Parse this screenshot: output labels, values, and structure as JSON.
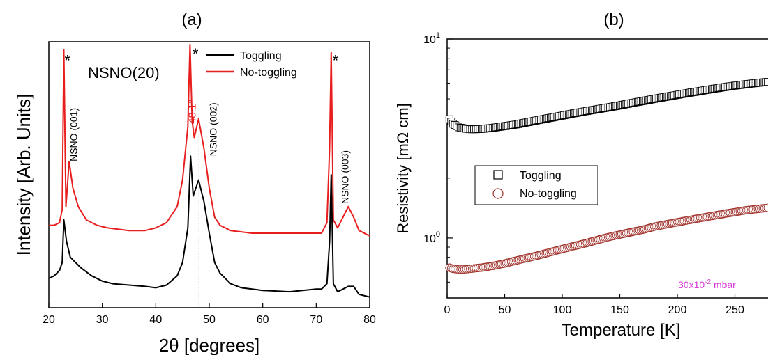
{
  "chart_data": [
    {
      "panel_label": "(a)",
      "type": "line",
      "xlabel": "2θ [degrees]",
      "ylabel": "Intensity [Arb. Units]",
      "xlim": [
        20,
        80
      ],
      "ylim": [
        0,
        1
      ],
      "xticks": [
        20,
        30,
        40,
        50,
        60,
        70,
        80
      ],
      "grid": false,
      "legend": {
        "placement": "top-right",
        "entries": [
          "Toggling",
          "No-toggling"
        ]
      },
      "sample_label": "NSNO(20)",
      "reference_line": {
        "x": 48.1,
        "label": "48.1°"
      },
      "annotations": [
        {
          "text": "*",
          "x": 23.5,
          "y": 0.91
        },
        {
          "text": "*",
          "x": 47.4,
          "y": 0.935
        },
        {
          "text": "*",
          "x": 73.6,
          "y": 0.91
        },
        {
          "text": "NSNO (001)",
          "x": 25.3,
          "y": 0.55,
          "rotate": -90
        },
        {
          "text": "NSNO (002)",
          "x": 51.4,
          "y": 0.57,
          "rotate": -90
        },
        {
          "text": "NSNO (003)",
          "x": 76.0,
          "y": 0.39,
          "rotate": -90
        }
      ],
      "series": [
        {
          "name": "Toggling",
          "color": "#000000",
          "x": [
            20,
            21,
            22,
            22.5,
            22.8,
            23.3,
            24,
            25,
            26,
            28,
            30,
            32,
            35,
            38,
            40,
            42,
            44,
            45,
            46,
            46.5,
            47,
            47.5,
            48,
            49,
            50,
            51,
            52,
            54,
            56,
            58,
            60,
            65,
            70,
            71,
            72,
            72.5,
            72.8,
            73.2,
            74,
            75,
            76,
            77,
            78,
            80
          ],
          "y": [
            0.11,
            0.12,
            0.14,
            0.17,
            0.33,
            0.25,
            0.19,
            0.17,
            0.15,
            0.12,
            0.1,
            0.09,
            0.085,
            0.08,
            0.075,
            0.085,
            0.12,
            0.17,
            0.3,
            0.57,
            0.42,
            0.45,
            0.48,
            0.4,
            0.28,
            0.17,
            0.13,
            0.09,
            0.075,
            0.07,
            0.065,
            0.06,
            0.07,
            0.07,
            0.09,
            0.25,
            0.5,
            0.09,
            0.06,
            0.07,
            0.08,
            0.08,
            0.05,
            0.04
          ]
        },
        {
          "name": "No-toggling",
          "color": "#e81e1e",
          "x": [
            20,
            21,
            22,
            22.5,
            22.8,
            23.2,
            23.8,
            24.5,
            25.5,
            27,
            29,
            31,
            35,
            38,
            40,
            42,
            44,
            45,
            46,
            46.4,
            46.8,
            47.2,
            48,
            49,
            50,
            51,
            52,
            54,
            58,
            62,
            66,
            70,
            71,
            72,
            72.5,
            72.8,
            73.2,
            74,
            75,
            76,
            77,
            78,
            80
          ],
          "y": [
            0.31,
            0.31,
            0.32,
            0.37,
            0.97,
            0.38,
            0.55,
            0.45,
            0.38,
            0.33,
            0.31,
            0.3,
            0.29,
            0.29,
            0.3,
            0.32,
            0.38,
            0.48,
            0.68,
            0.99,
            0.7,
            0.64,
            0.71,
            0.6,
            0.45,
            0.34,
            0.31,
            0.29,
            0.28,
            0.28,
            0.28,
            0.28,
            0.28,
            0.32,
            0.6,
            0.96,
            0.33,
            0.3,
            0.34,
            0.38,
            0.34,
            0.29,
            0.27
          ]
        }
      ]
    },
    {
      "panel_label": "(b)",
      "type": "scatter",
      "xlabel": "Temperature  [K]",
      "ylabel": "Resistivity [mΩ cm]",
      "yscale": "log",
      "xlim": [
        0,
        280
      ],
      "ylim": [
        0.5,
        10
      ],
      "xticks": [
        0,
        50,
        100,
        150,
        200,
        250
      ],
      "yticks": [
        {
          "base": "10",
          "exp": "0",
          "value": 1
        },
        {
          "base": "10",
          "exp": "1",
          "value": 10
        }
      ],
      "grid": false,
      "legend": {
        "placement": "center-left",
        "entries": [
          "Toggling",
          "No-toggling"
        ]
      },
      "pressure_label": {
        "base": "30x10",
        "exp": "-2",
        "unit": " mbar",
        "color": "#d63ad6"
      },
      "series": [
        {
          "name": "Toggling",
          "marker": "square",
          "color": "#000000",
          "x": [
            2,
            5,
            10,
            15,
            20,
            25,
            30,
            40,
            50,
            60,
            70,
            80,
            90,
            100,
            110,
            120,
            130,
            140,
            150,
            160,
            170,
            180,
            190,
            200,
            210,
            220,
            230,
            240,
            250,
            260,
            270,
            280
          ],
          "y": [
            3.95,
            3.75,
            3.6,
            3.55,
            3.52,
            3.52,
            3.53,
            3.58,
            3.65,
            3.72,
            3.82,
            3.92,
            4.02,
            4.12,
            4.23,
            4.33,
            4.43,
            4.53,
            4.64,
            4.76,
            4.88,
            5.0,
            5.12,
            5.24,
            5.36,
            5.48,
            5.6,
            5.72,
            5.83,
            5.93,
            6.02,
            6.1
          ]
        },
        {
          "name": "No-toggling",
          "marker": "circle",
          "color": "#a0302a",
          "x": [
            2,
            5,
            10,
            15,
            20,
            25,
            30,
            40,
            50,
            60,
            70,
            80,
            90,
            100,
            110,
            120,
            130,
            140,
            150,
            160,
            170,
            180,
            190,
            200,
            210,
            220,
            230,
            240,
            250,
            260,
            270,
            280
          ],
          "y": [
            0.71,
            0.7,
            0.695,
            0.695,
            0.7,
            0.705,
            0.71,
            0.725,
            0.745,
            0.77,
            0.795,
            0.82,
            0.85,
            0.88,
            0.91,
            0.94,
            0.975,
            1.01,
            1.04,
            1.07,
            1.1,
            1.14,
            1.17,
            1.2,
            1.23,
            1.26,
            1.29,
            1.32,
            1.35,
            1.38,
            1.4,
            1.42
          ]
        }
      ]
    }
  ]
}
